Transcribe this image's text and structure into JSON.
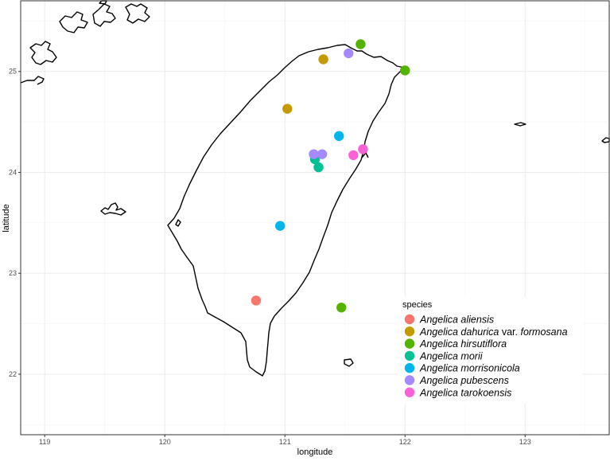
{
  "chart_data": {
    "type": "scatter",
    "title": "",
    "xlabel": "longitude",
    "ylabel": "latitude",
    "xlim": [
      118.8,
      123.7
    ],
    "ylim": [
      21.4,
      25.7
    ],
    "x_ticks": [
      119,
      119.5,
      120,
      120.5,
      121,
      121.5,
      122,
      122.5,
      123,
      123.5
    ],
    "x_tick_labels": [
      "119",
      "",
      "120",
      "",
      "121",
      "",
      "122",
      "",
      "123",
      ""
    ],
    "y_ticks": [
      21.5,
      22,
      22.5,
      23,
      23.5,
      24,
      24.5,
      25,
      25.5
    ],
    "y_tick_labels": [
      "",
      "22",
      "",
      "23",
      "",
      "24",
      "",
      "25",
      ""
    ],
    "grid": true,
    "legend_title": "species",
    "legend_position": "bottom-right",
    "series": [
      {
        "name": "Angelica aliensis",
        "color": "#F8766D",
        "points": [
          [
            120.76,
            22.73
          ]
        ]
      },
      {
        "name": "Angelica dahurica var. formosana",
        "color": "#C49A00",
        "points": [
          [
            121.32,
            25.12
          ],
          [
            121.02,
            24.63
          ]
        ]
      },
      {
        "name": "Angelica hirsutiflora",
        "color": "#53B400",
        "points": [
          [
            121.63,
            25.27
          ],
          [
            122.0,
            25.01
          ],
          [
            121.47,
            22.66
          ]
        ]
      },
      {
        "name": "Angelica morii",
        "color": "#00C094",
        "points": [
          [
            121.25,
            24.13
          ],
          [
            121.28,
            24.05
          ]
        ]
      },
      {
        "name": "Angelica morrisonicola",
        "color": "#00B6EB",
        "points": [
          [
            121.45,
            24.36
          ],
          [
            120.96,
            23.47
          ]
        ]
      },
      {
        "name": "Angelica pubescens",
        "color": "#A58AFF",
        "points": [
          [
            121.53,
            25.18
          ],
          [
            121.24,
            24.18
          ],
          [
            121.31,
            24.18
          ]
        ]
      },
      {
        "name": "Angelica tarokoensis",
        "color": "#FB61D7",
        "points": [
          [
            121.65,
            24.23
          ],
          [
            121.57,
            24.17
          ]
        ]
      }
    ]
  }
}
